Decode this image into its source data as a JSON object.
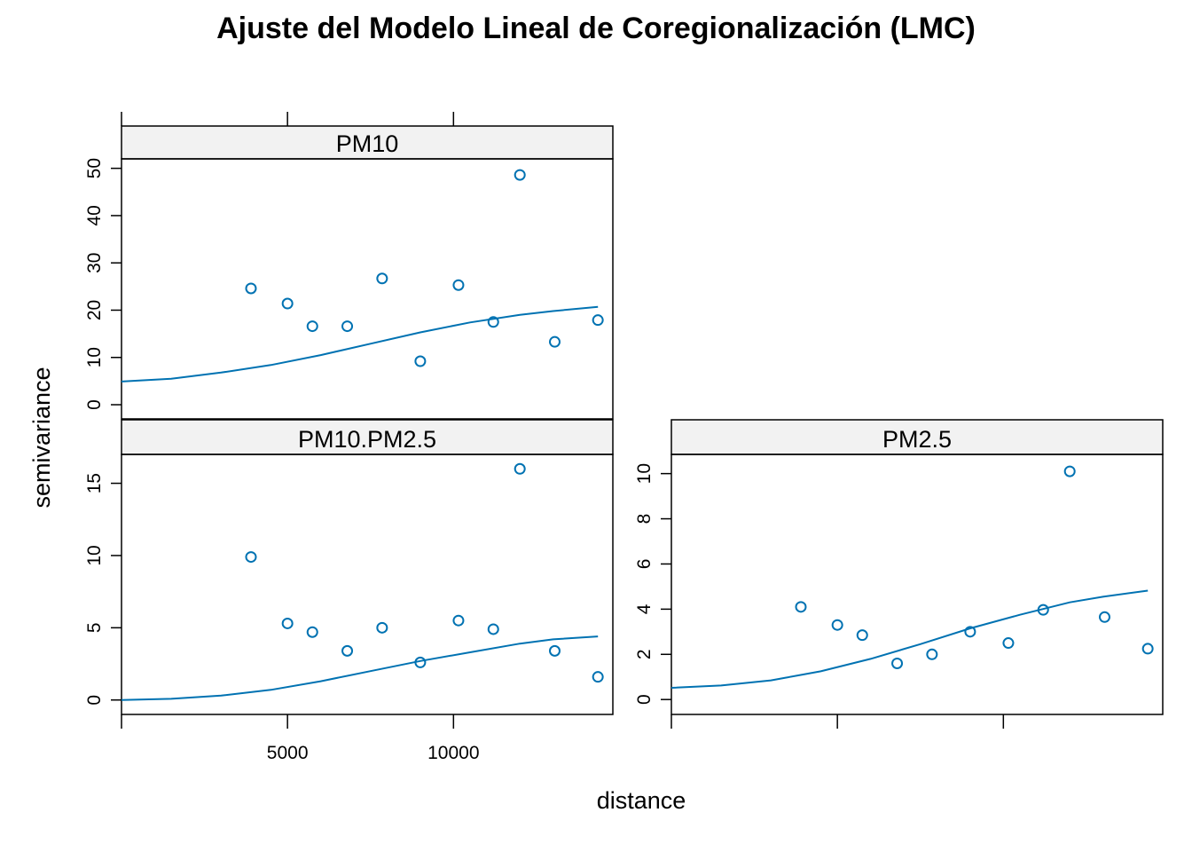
{
  "chart_data": {
    "type": "scatter",
    "title": "Ajuste del Modelo Lineal de Coregionalización (LMC)",
    "xlabel": "distance",
    "ylabel": "semivariance",
    "x_ticks": [
      5000,
      10000
    ],
    "colors": {
      "points": "#0072B2",
      "line": "#0072B2",
      "strip": "#f2f2f2",
      "frame": "#000000"
    },
    "panels": [
      {
        "name": "PM10",
        "strip_label": "PM10",
        "xlim": [
          0,
          14800
        ],
        "ylim": [
          -3,
          52
        ],
        "y_ticks": [
          0,
          10,
          20,
          30,
          40,
          50
        ],
        "points": [
          {
            "x": 3900,
            "y": 24.6
          },
          {
            "x": 5000,
            "y": 21.4
          },
          {
            "x": 5750,
            "y": 16.6
          },
          {
            "x": 6800,
            "y": 16.6
          },
          {
            "x": 7850,
            "y": 26.7
          },
          {
            "x": 9000,
            "y": 9.2
          },
          {
            "x": 10150,
            "y": 25.3
          },
          {
            "x": 11200,
            "y": 17.5
          },
          {
            "x": 12000,
            "y": 48.6
          },
          {
            "x": 13050,
            "y": 13.3
          },
          {
            "x": 14350,
            "y": 17.9
          }
        ],
        "model": {
          "x": [
            0,
            1500,
            3000,
            4500,
            6000,
            7500,
            9000,
            10500,
            12000,
            13000,
            14350
          ],
          "y": [
            4.9,
            5.5,
            6.8,
            8.4,
            10.5,
            12.9,
            15.3,
            17.4,
            19.0,
            19.8,
            20.7
          ]
        }
      },
      {
        "name": "PM10.PM2.5",
        "strip_label": "PM10.PM2.5",
        "xlim": [
          0,
          14800
        ],
        "ylim": [
          -1,
          17
        ],
        "y_ticks": [
          0,
          5,
          10,
          15
        ],
        "points": [
          {
            "x": 3900,
            "y": 9.9
          },
          {
            "x": 5000,
            "y": 5.3
          },
          {
            "x": 5750,
            "y": 4.7
          },
          {
            "x": 6800,
            "y": 3.4
          },
          {
            "x": 7850,
            "y": 5.0
          },
          {
            "x": 9000,
            "y": 2.6
          },
          {
            "x": 10150,
            "y": 5.5
          },
          {
            "x": 11200,
            "y": 4.9
          },
          {
            "x": 12000,
            "y": 16.0
          },
          {
            "x": 13050,
            "y": 3.4
          },
          {
            "x": 14350,
            "y": 1.6
          }
        ],
        "model": {
          "x": [
            0,
            1500,
            3000,
            4500,
            6000,
            7500,
            9000,
            10500,
            12000,
            13000,
            14350
          ],
          "y": [
            0.0,
            0.08,
            0.3,
            0.7,
            1.3,
            2.0,
            2.7,
            3.3,
            3.9,
            4.2,
            4.4
          ]
        }
      },
      {
        "name": "PM2.5",
        "strip_label": "PM2.5",
        "xlim": [
          0,
          14800
        ],
        "ylim": [
          -0.66,
          10.85
        ],
        "y_ticks": [
          0,
          2,
          4,
          6,
          8,
          10
        ],
        "points": [
          {
            "x": 3900,
            "y": 4.1
          },
          {
            "x": 5000,
            "y": 3.3
          },
          {
            "x": 5750,
            "y": 2.85
          },
          {
            "x": 6800,
            "y": 1.6
          },
          {
            "x": 7850,
            "y": 2.0
          },
          {
            "x": 9000,
            "y": 3.0
          },
          {
            "x": 10150,
            "y": 2.5
          },
          {
            "x": 11200,
            "y": 3.97
          },
          {
            "x": 12000,
            "y": 10.1
          },
          {
            "x": 13050,
            "y": 3.65
          },
          {
            "x": 14350,
            "y": 2.25
          }
        ],
        "model": {
          "x": [
            0,
            1500,
            3000,
            4500,
            6000,
            7500,
            9000,
            10500,
            12000,
            13000,
            14350
          ],
          "y": [
            0.52,
            0.62,
            0.85,
            1.25,
            1.8,
            2.45,
            3.15,
            3.75,
            4.3,
            4.55,
            4.82
          ]
        }
      }
    ]
  }
}
